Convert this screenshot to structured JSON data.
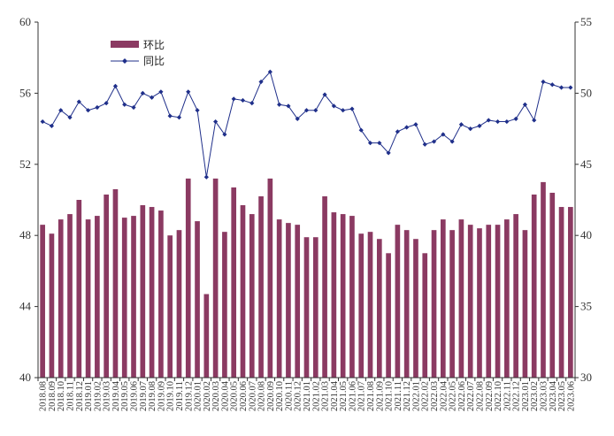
{
  "chart_data": {
    "type": "bar+line",
    "categories": [
      "2018.08",
      "2018.09",
      "2018.10",
      "2018.11",
      "2018.12",
      "2019.01",
      "2019.02",
      "2019.03",
      "2019.04",
      "2019.05",
      "2019.06",
      "2019.07",
      "2019.08",
      "2019.09",
      "2019.10",
      "2019.11",
      "2019.12",
      "2020.01",
      "2020.02",
      "2020.03",
      "2020.04",
      "2020.05",
      "2020.06",
      "2020.07",
      "2020.08",
      "2020.09",
      "2020.10",
      "2020.11",
      "2020.12",
      "2021.01",
      "2021.02",
      "2021.03",
      "2021.04",
      "2021.05",
      "2021.06",
      "2021.07",
      "2021.08",
      "2021.09",
      "2021.10",
      "2021.11",
      "2021.12",
      "2022.01",
      "2022.02",
      "2022.03",
      "2022.04",
      "2022.05",
      "2022.06",
      "2022.07",
      "2022.08",
      "2022.09",
      "2022.10",
      "2022.11",
      "2022.12",
      "2023.01",
      "2023.02",
      "2023.03",
      "2023.04",
      "2023.05",
      "2023.06"
    ],
    "series": [
      {
        "name": "环比",
        "type": "bar",
        "axis": "left",
        "color": "#8B3A62",
        "values": [
          48.6,
          48.1,
          48.9,
          49.2,
          50.0,
          48.9,
          49.1,
          50.3,
          50.6,
          49.0,
          49.1,
          49.7,
          49.6,
          49.4,
          48.0,
          48.3,
          51.2,
          48.8,
          44.7,
          51.2,
          48.2,
          50.7,
          49.7,
          49.2,
          50.2,
          51.2,
          48.9,
          48.7,
          48.6,
          47.9,
          47.9,
          50.2,
          49.3,
          49.2,
          49.1,
          48.1,
          48.2,
          47.8,
          47.0,
          48.6,
          48.3,
          47.8,
          47.0,
          48.3,
          48.9,
          48.3,
          48.9,
          48.6,
          48.4,
          48.6,
          48.6,
          48.9,
          49.2,
          48.3,
          50.3,
          51.0,
          50.4,
          49.6,
          49.6
        ]
      },
      {
        "name": "同比",
        "type": "line",
        "axis": "right",
        "color": "#1F2F8A",
        "values": [
          48.0,
          47.7,
          48.8,
          48.3,
          49.4,
          48.8,
          49.0,
          49.3,
          50.5,
          49.2,
          49.0,
          50.0,
          49.7,
          50.1,
          48.4,
          48.3,
          50.1,
          48.8,
          44.1,
          48.0,
          47.1,
          49.6,
          49.5,
          49.3,
          50.8,
          51.5,
          49.2,
          49.1,
          48.2,
          48.8,
          48.8,
          49.9,
          49.1,
          48.8,
          48.9,
          47.4,
          46.5,
          46.5,
          45.8,
          47.3,
          47.6,
          47.8,
          46.4,
          46.6,
          47.1,
          46.6,
          47.8,
          47.5,
          47.7,
          48.1,
          48.0,
          48.0,
          48.2,
          49.2,
          48.1,
          50.8,
          50.6,
          50.4,
          50.4
        ]
      }
    ],
    "y_left": {
      "min": 40,
      "max": 60,
      "ticks": [
        40,
        44,
        48,
        52,
        56,
        60
      ]
    },
    "y_right": {
      "min": 30,
      "max": 55,
      "ticks": [
        30,
        35,
        40,
        45,
        50,
        55
      ]
    },
    "legend": {
      "position": "top-left",
      "items": [
        "环比",
        "同比"
      ]
    },
    "grid": false
  }
}
